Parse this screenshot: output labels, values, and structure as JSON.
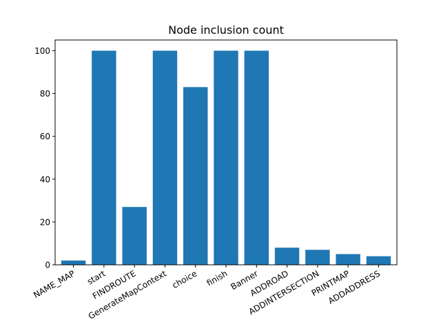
{
  "chart_data": {
    "type": "bar",
    "title": "Node inclusion count",
    "xlabel": "",
    "ylabel": "",
    "categories": [
      "NAME_MAP",
      "start",
      "FINDROUTE",
      "GenerateMapContext",
      "choice",
      "finish",
      "Banner",
      "ADDROAD",
      "ADDINTERSECTION",
      "PRINTMAP",
      "ADDADDRESS"
    ],
    "values": [
      2,
      100,
      27,
      100,
      83,
      100,
      100,
      8,
      7,
      5,
      4
    ],
    "ylim": [
      0,
      105
    ],
    "yticks": [
      0,
      20,
      40,
      60,
      80,
      100
    ],
    "bar_color": "#1f77b4",
    "grid": false,
    "legend": "none"
  }
}
